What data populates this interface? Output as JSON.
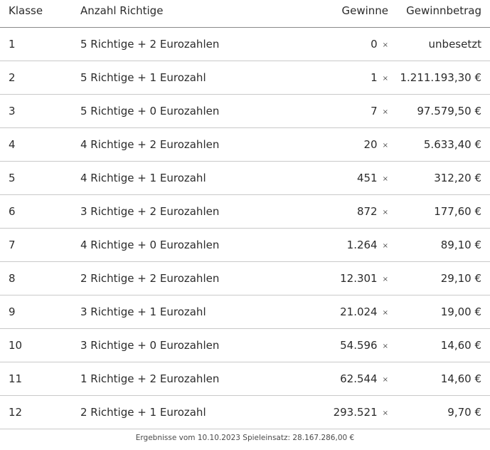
{
  "header": {
    "klasse": "Klasse",
    "anzahl": "Anzahl Richtige",
    "gewinne": "Gewinne",
    "betrag": "Gewinnbetrag"
  },
  "multiplier_symbol": "×",
  "rows": [
    {
      "klasse": "1",
      "anzahl": "5 Richtige + 2 Eurozahlen",
      "gewinne": "0",
      "betrag": "unbesetzt"
    },
    {
      "klasse": "2",
      "anzahl": "5 Richtige + 1 Eurozahl",
      "gewinne": "1",
      "betrag": "1.211.193,30 €"
    },
    {
      "klasse": "3",
      "anzahl": "5 Richtige + 0 Eurozahlen",
      "gewinne": "7",
      "betrag": "97.579,50 €"
    },
    {
      "klasse": "4",
      "anzahl": "4 Richtige + 2 Eurozahlen",
      "gewinne": "20",
      "betrag": "5.633,40 €"
    },
    {
      "klasse": "5",
      "anzahl": "4 Richtige + 1 Eurozahl",
      "gewinne": "451",
      "betrag": "312,20 €"
    },
    {
      "klasse": "6",
      "anzahl": "3 Richtige + 2 Eurozahlen",
      "gewinne": "872",
      "betrag": "177,60 €"
    },
    {
      "klasse": "7",
      "anzahl": "4 Richtige + 0 Eurozahlen",
      "gewinne": "1.264",
      "betrag": "89,10 €"
    },
    {
      "klasse": "8",
      "anzahl": "2 Richtige + 2 Eurozahlen",
      "gewinne": "12.301",
      "betrag": "29,10 €"
    },
    {
      "klasse": "9",
      "anzahl": "3 Richtige + 1 Eurozahl",
      "gewinne": "21.024",
      "betrag": "19,00 €"
    },
    {
      "klasse": "10",
      "anzahl": "3 Richtige + 0 Eurozahlen",
      "gewinne": "54.596",
      "betrag": "14,60 €"
    },
    {
      "klasse": "11",
      "anzahl": "1 Richtige + 2 Eurozahlen",
      "gewinne": "62.544",
      "betrag": "14,60 €"
    },
    {
      "klasse": "12",
      "anzahl": "2 Richtige + 1 Eurozahl",
      "gewinne": "293.521",
      "betrag": "9,70 €"
    }
  ],
  "footer": "Ergebnisse vom 10.10.2023 Spieleinsatz: 28.167.286,00 €"
}
